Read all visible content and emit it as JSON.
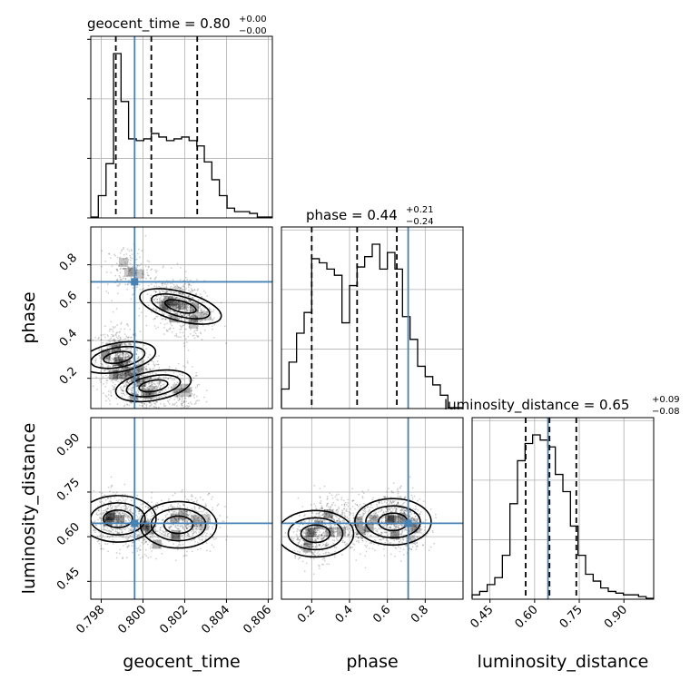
{
  "chart_data": {
    "type": "corner",
    "parameters": [
      {
        "name": "geocent_time",
        "axis_label": "geocent_time",
        "range": [
          0.7975,
          0.8062
        ],
        "ticks": [
          0.798,
          0.8,
          0.802,
          0.804,
          0.806
        ],
        "tick_labels": [
          "0.798",
          "0.800",
          "0.802",
          "0.804",
          "0.806"
        ],
        "truth": 0.7996,
        "quantiles": [
          0.7987,
          0.8004,
          0.8026
        ],
        "title_main": "geocent_time = 0.80",
        "title_plus": "+0.00",
        "title_minus": "−0.00",
        "hist_bin_edges": [
          0.7975,
          0.79786,
          0.79823,
          0.79859,
          0.79895,
          0.79931,
          0.79968,
          0.80004,
          0.8004,
          0.80076,
          0.80113,
          0.80149,
          0.80185,
          0.80221,
          0.80258,
          0.80294,
          0.8033,
          0.80366,
          0.80403,
          0.80439,
          0.80475,
          0.80511,
          0.80548,
          0.80584,
          0.8062
        ],
        "hist_counts": [
          0.0,
          0.12,
          0.3,
          0.92,
          0.65,
          0.44,
          0.43,
          0.44,
          0.47,
          0.45,
          0.43,
          0.44,
          0.45,
          0.43,
          0.4,
          0.31,
          0.21,
          0.12,
          0.05,
          0.03,
          0.03,
          0.02,
          0.0,
          0.0
        ]
      },
      {
        "name": "phase",
        "axis_label": "phase",
        "range": [
          0.04,
          1.0
        ],
        "ticks": [
          0.2,
          0.4,
          0.6,
          0.8
        ],
        "tick_labels": [
          "0.2",
          "0.4",
          "0.6",
          "0.8"
        ],
        "truth": 0.71,
        "quantiles": [
          0.2,
          0.44,
          0.65
        ],
        "title_main": "phase = 0.44",
        "title_plus": "+0.21",
        "title_minus": "−0.24",
        "hist_bin_edges": [
          0.04,
          0.08,
          0.12,
          0.16,
          0.2,
          0.24,
          0.28,
          0.32,
          0.36,
          0.4,
          0.44,
          0.48,
          0.52,
          0.56,
          0.6,
          0.64,
          0.68,
          0.72,
          0.76,
          0.8,
          0.84,
          0.88,
          0.92,
          0.96,
          1.0
        ],
        "hist_counts": [
          0.09,
          0.22,
          0.36,
          0.46,
          0.72,
          0.7,
          0.67,
          0.64,
          0.41,
          0.59,
          0.68,
          0.73,
          0.79,
          0.67,
          0.75,
          0.67,
          0.44,
          0.33,
          0.2,
          0.15,
          0.11,
          0.06,
          0.0,
          0.0
        ]
      },
      {
        "name": "luminosity_distance",
        "axis_label": "luminosity_distance",
        "range": [
          0.39,
          1.0
        ],
        "ticks": [
          0.45,
          0.6,
          0.75,
          0.9
        ],
        "tick_labels": [
          "0.45",
          "0.60",
          "0.75",
          "0.90"
        ],
        "truth": 0.645,
        "quantiles": [
          0.57,
          0.65,
          0.74
        ],
        "title_main": "luminosity_distance = 0.65",
        "title_plus": "+0.09",
        "title_minus": "−0.08",
        "hist_bin_edges": [
          0.39,
          0.4154,
          0.4408,
          0.4662,
          0.4917,
          0.5171,
          0.5425,
          0.5679,
          0.5933,
          0.6188,
          0.6442,
          0.6696,
          0.695,
          0.7204,
          0.7458,
          0.7712,
          0.7967,
          0.8221,
          0.8475,
          0.8729,
          0.8983,
          0.9237,
          0.9492,
          0.9746,
          1.0
        ],
        "hist_counts": [
          0.02,
          0.04,
          0.08,
          0.12,
          0.25,
          0.55,
          0.8,
          0.9,
          0.95,
          0.92,
          0.88,
          0.72,
          0.62,
          0.42,
          0.25,
          0.14,
          0.1,
          0.06,
          0.04,
          0.03,
          0.02,
          0.02,
          0.01,
          0.0
        ]
      }
    ],
    "scatter_panels": [
      {
        "x_param": "geocent_time",
        "y_param": "phase",
        "hotspots": [
          {
            "x": 0.7988,
            "y": 0.33,
            "w": 3
          },
          {
            "x": 0.7991,
            "y": 0.22,
            "w": 2
          },
          {
            "x": 0.7999,
            "y": 0.18,
            "w": 2
          },
          {
            "x": 0.8012,
            "y": 0.61,
            "w": 2
          },
          {
            "x": 0.8019,
            "y": 0.58,
            "w": 2
          },
          {
            "x": 0.8025,
            "y": 0.53,
            "w": 1
          },
          {
            "x": 0.7993,
            "y": 0.77,
            "w": 1
          },
          {
            "x": 0.8003,
            "y": 0.12,
            "w": 1
          },
          {
            "x": 0.8018,
            "y": 0.13,
            "w": 1
          }
        ],
        "contour_centers": [
          {
            "x": 0.8018,
            "y": 0.58
          },
          {
            "x": 0.7988,
            "y": 0.31
          },
          {
            "x": 0.8005,
            "y": 0.16
          }
        ]
      },
      {
        "x_param": "geocent_time",
        "y_param": "luminosity_distance",
        "hotspots": [
          {
            "x": 0.7987,
            "y": 0.66,
            "w": 3
          },
          {
            "x": 0.8,
            "y": 0.63,
            "w": 2
          },
          {
            "x": 0.8018,
            "y": 0.64,
            "w": 2
          },
          {
            "x": 0.8028,
            "y": 0.65,
            "w": 1
          }
        ],
        "contour_centers": [
          {
            "x": 0.7988,
            "y": 0.66
          },
          {
            "x": 0.8017,
            "y": 0.64
          }
        ]
      },
      {
        "x_param": "phase",
        "y_param": "luminosity_distance",
        "hotspots": [
          {
            "x": 0.2,
            "y": 0.6,
            "w": 2
          },
          {
            "x": 0.3,
            "y": 0.65,
            "w": 2
          },
          {
            "x": 0.48,
            "y": 0.64,
            "w": 2
          },
          {
            "x": 0.65,
            "y": 0.66,
            "w": 3
          },
          {
            "x": 0.72,
            "y": 0.62,
            "w": 1
          }
        ],
        "contour_centers": [
          {
            "x": 0.22,
            "y": 0.61
          },
          {
            "x": 0.63,
            "y": 0.65
          }
        ]
      }
    ],
    "truth_color": "#4682b4",
    "hist_color": "#000000",
    "grid": true
  }
}
